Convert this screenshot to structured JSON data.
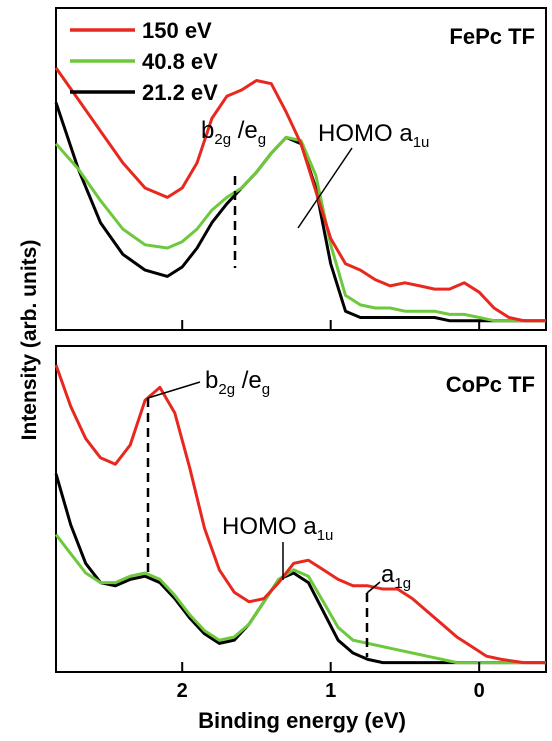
{
  "chart_data": [
    {
      "type": "line",
      "title": "FePc TF",
      "xlabel": "Binding energy (eV)",
      "ylabel": "Intensity (arb. units)",
      "xlim": [
        2.85,
        -0.45
      ],
      "x_reversed": true,
      "yticks": "none",
      "series": [
        {
          "name": "150 eV",
          "color": "#e8281f",
          "x": [
            2.85,
            2.7,
            2.55,
            2.4,
            2.25,
            2.1,
            2.0,
            1.9,
            1.8,
            1.7,
            1.6,
            1.5,
            1.4,
            1.3,
            1.2,
            1.1,
            1.0,
            0.9,
            0.8,
            0.7,
            0.6,
            0.5,
            0.4,
            0.3,
            0.2,
            0.1,
            0.0,
            -0.1,
            -0.2,
            -0.3,
            -0.45
          ],
          "y": [
            0.82,
            0.72,
            0.62,
            0.52,
            0.44,
            0.41,
            0.44,
            0.52,
            0.66,
            0.73,
            0.75,
            0.78,
            0.77,
            0.68,
            0.58,
            0.43,
            0.28,
            0.2,
            0.18,
            0.15,
            0.13,
            0.14,
            0.13,
            0.12,
            0.12,
            0.14,
            0.11,
            0.06,
            0.03,
            0.02,
            0.02
          ]
        },
        {
          "name": "40.8 eV",
          "color": "#6dc93b",
          "x": [
            2.85,
            2.7,
            2.55,
            2.4,
            2.25,
            2.1,
            2.0,
            1.9,
            1.8,
            1.7,
            1.6,
            1.5,
            1.4,
            1.3,
            1.2,
            1.1,
            1.0,
            0.9,
            0.8,
            0.7,
            0.6,
            0.5,
            0.4,
            0.3,
            0.2,
            0.1,
            0.0,
            -0.1,
            -0.2,
            -0.3,
            -0.45
          ],
          "y": [
            0.58,
            0.5,
            0.4,
            0.31,
            0.26,
            0.25,
            0.27,
            0.31,
            0.37,
            0.41,
            0.44,
            0.49,
            0.55,
            0.6,
            0.59,
            0.48,
            0.26,
            0.1,
            0.07,
            0.06,
            0.06,
            0.05,
            0.05,
            0.05,
            0.04,
            0.04,
            0.03,
            0.02,
            0.02,
            0.02,
            0.02
          ]
        },
        {
          "name": "21.2 eV",
          "color": "#000000",
          "x": [
            2.85,
            2.7,
            2.55,
            2.4,
            2.25,
            2.1,
            2.0,
            1.9,
            1.8,
            1.7,
            1.6,
            1.5,
            1.4,
            1.3,
            1.2,
            1.1,
            1.0,
            0.9,
            0.8,
            0.7,
            0.6,
            0.5,
            0.4,
            0.3,
            0.2,
            0.1,
            0.0,
            -0.1,
            -0.2,
            -0.3,
            -0.45
          ],
          "y": [
            0.71,
            0.5,
            0.33,
            0.23,
            0.18,
            0.16,
            0.19,
            0.25,
            0.33,
            0.39,
            0.44,
            0.49,
            0.55,
            0.6,
            0.58,
            0.44,
            0.2,
            0.05,
            0.03,
            0.03,
            0.03,
            0.03,
            0.03,
            0.03,
            0.02,
            0.02,
            0.02,
            0.02,
            0.02,
            0.02,
            0.02
          ]
        }
      ],
      "annotations": [
        {
          "text": "b",
          "sub": "2g",
          "text2": " /e",
          "sub2": "g",
          "x": 1.6,
          "type": "dashed-marker"
        },
        {
          "text": "HOMO a",
          "sub": "1u",
          "x": 1.15,
          "type": "leader-line"
        }
      ]
    },
    {
      "type": "line",
      "title": "CoPc TF",
      "xlabel": "Binding energy (eV)",
      "ylabel": "Intensity (arb. units)",
      "xlim": [
        2.85,
        -0.45
      ],
      "x_reversed": true,
      "xticks": [
        "2",
        "1",
        "0"
      ],
      "xtick_values": [
        2,
        1,
        0
      ],
      "series": [
        {
          "name": "150 eV",
          "color": "#e8281f",
          "x": [
            2.85,
            2.75,
            2.65,
            2.55,
            2.45,
            2.35,
            2.25,
            2.15,
            2.05,
            1.95,
            1.85,
            1.75,
            1.65,
            1.55,
            1.45,
            1.35,
            1.25,
            1.15,
            1.05,
            0.95,
            0.85,
            0.75,
            0.65,
            0.55,
            0.45,
            0.35,
            0.25,
            0.15,
            0.05,
            -0.05,
            -0.15,
            -0.3,
            -0.45
          ],
          "y": [
            0.95,
            0.82,
            0.72,
            0.66,
            0.64,
            0.7,
            0.84,
            0.88,
            0.8,
            0.63,
            0.44,
            0.31,
            0.24,
            0.21,
            0.22,
            0.27,
            0.33,
            0.34,
            0.31,
            0.28,
            0.26,
            0.26,
            0.25,
            0.25,
            0.22,
            0.18,
            0.14,
            0.1,
            0.07,
            0.04,
            0.03,
            0.02,
            0.02
          ]
        },
        {
          "name": "40.8 eV",
          "color": "#6dc93b",
          "x": [
            2.85,
            2.75,
            2.65,
            2.55,
            2.45,
            2.35,
            2.25,
            2.15,
            2.05,
            1.95,
            1.85,
            1.75,
            1.65,
            1.55,
            1.45,
            1.35,
            1.25,
            1.15,
            1.05,
            0.95,
            0.85,
            0.75,
            0.65,
            0.55,
            0.45,
            0.35,
            0.25,
            0.15,
            0.05,
            -0.05,
            -0.15,
            -0.3,
            -0.45
          ],
          "y": [
            0.42,
            0.36,
            0.3,
            0.27,
            0.27,
            0.29,
            0.3,
            0.28,
            0.23,
            0.17,
            0.12,
            0.09,
            0.1,
            0.14,
            0.21,
            0.28,
            0.31,
            0.29,
            0.21,
            0.13,
            0.09,
            0.08,
            0.07,
            0.06,
            0.05,
            0.04,
            0.03,
            0.02,
            0.02,
            0.02,
            0.02,
            0.02,
            0.02
          ]
        },
        {
          "name": "21.2 eV",
          "color": "#000000",
          "x": [
            2.85,
            2.75,
            2.65,
            2.55,
            2.45,
            2.35,
            2.25,
            2.15,
            2.05,
            1.95,
            1.85,
            1.75,
            1.65,
            1.55,
            1.45,
            1.35,
            1.25,
            1.15,
            1.05,
            0.95,
            0.85,
            0.75,
            0.65,
            0.55,
            0.45,
            0.35,
            0.25,
            0.15,
            0.05,
            -0.05,
            -0.15,
            -0.3,
            -0.45
          ],
          "y": [
            0.61,
            0.45,
            0.33,
            0.27,
            0.26,
            0.28,
            0.29,
            0.27,
            0.22,
            0.16,
            0.11,
            0.08,
            0.09,
            0.14,
            0.21,
            0.28,
            0.3,
            0.27,
            0.18,
            0.09,
            0.05,
            0.03,
            0.02,
            0.02,
            0.02,
            0.02,
            0.02,
            0.02,
            0.02,
            0.02,
            0.02,
            0.02,
            0.02
          ]
        }
      ],
      "annotations": [
        {
          "text": "b",
          "sub": "2g",
          "text2": " /e",
          "sub2": "g",
          "x": 2.2,
          "type": "dashed-marker"
        },
        {
          "text": "HOMO a",
          "sub": "1u",
          "x": 1.3,
          "type": "leader-line"
        },
        {
          "text": "a",
          "sub": "1g",
          "x": 0.75,
          "type": "dashed-marker"
        }
      ]
    }
  ],
  "legend": {
    "placement": "top-left",
    "items": [
      {
        "label": "150 eV",
        "color": "#e8281f"
      },
      {
        "label": "40.8 eV",
        "color": "#6dc93b"
      },
      {
        "label": "21.2 eV",
        "color": "#000000"
      }
    ]
  },
  "axis": {
    "ylabel": "Intensity (arb. units)",
    "xlabel": "Binding energy (eV)"
  },
  "panels": {
    "top_title": "FePc TF",
    "bottom_title": "CoPc TF"
  }
}
